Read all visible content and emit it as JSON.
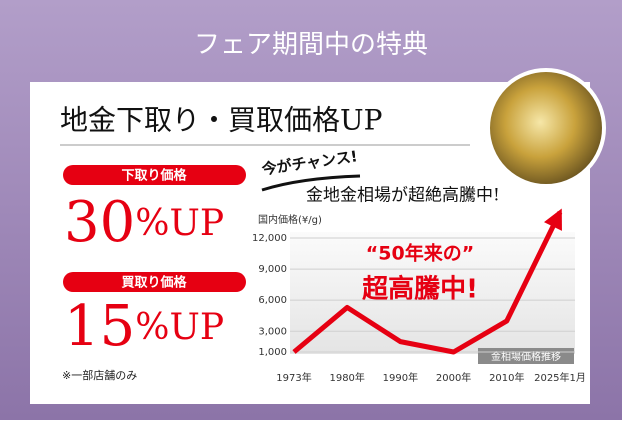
{
  "header": {
    "title": "フェア期間中の特典"
  },
  "card": {
    "title": "地金下取り・買取価格UP",
    "offers": [
      {
        "label": "下取り価格",
        "rate": "30",
        "suffix": "%UP"
      },
      {
        "label": "買取り価格",
        "rate": "15",
        "suffix": "%UP"
      }
    ],
    "note": "※一部店舗のみ",
    "lead": "今がチャンス!",
    "headline": "金地金相場が超絶高騰中!"
  },
  "chart_data": {
    "type": "line",
    "y_label": "国内価格(¥/g)",
    "annotation": [
      "“50年来の”",
      "超高騰中!"
    ],
    "badge": "金相場価格推移",
    "categories": [
      "1973年",
      "1980年",
      "1990年",
      "2000年",
      "2010年",
      "2025年1月"
    ],
    "series": [
      {
        "color": "#e60012",
        "values": [
          1000,
          5300,
          2000,
          1000,
          4000,
          14500
        ]
      }
    ],
    "ylim": [
      1000,
      12000
    ],
    "yticks": [
      {
        "value": 1000,
        "label": "1,000"
      },
      {
        "value": 3000,
        "label": "3,000"
      },
      {
        "value": 6000,
        "label": "6,000"
      },
      {
        "value": 9000,
        "label": "9,000"
      },
      {
        "value": 12000,
        "label": "12,000"
      }
    ],
    "grid": true
  }
}
